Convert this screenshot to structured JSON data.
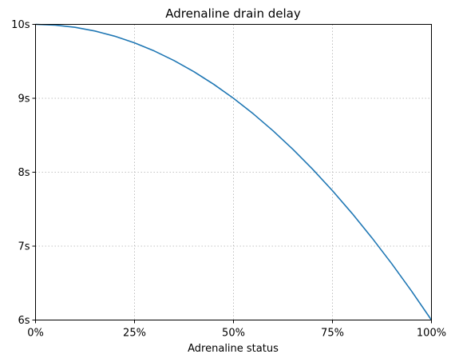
{
  "chart_data": {
    "type": "line",
    "title": "Adrenaline drain delay",
    "xlabel": "Adrenaline status",
    "ylabel": "",
    "xlim": [
      0,
      100
    ],
    "ylim": [
      6,
      10
    ],
    "x_ticks": [
      {
        "value": 0,
        "label": "0%"
      },
      {
        "value": 25,
        "label": "25%"
      },
      {
        "value": 50,
        "label": "50%"
      },
      {
        "value": 75,
        "label": "75%"
      },
      {
        "value": 100,
        "label": "100%"
      }
    ],
    "y_ticks": [
      {
        "value": 6,
        "label": "6s"
      },
      {
        "value": 7,
        "label": "7s"
      },
      {
        "value": 8,
        "label": "8s"
      },
      {
        "value": 9,
        "label": "9s"
      },
      {
        "value": 10,
        "label": "10s"
      }
    ],
    "grid": true,
    "series": [
      {
        "color": "#1f77b4",
        "x": [
          0,
          5,
          10,
          15,
          20,
          25,
          30,
          35,
          40,
          45,
          50,
          55,
          60,
          65,
          70,
          75,
          80,
          85,
          90,
          95,
          100
        ],
        "y": [
          10.0,
          9.99,
          9.96,
          9.91,
          9.84,
          9.75,
          9.64,
          9.51,
          9.36,
          9.19,
          9.0,
          8.79,
          8.56,
          8.31,
          8.04,
          7.75,
          7.44,
          7.11,
          6.76,
          6.39,
          6.0
        ]
      }
    ]
  }
}
